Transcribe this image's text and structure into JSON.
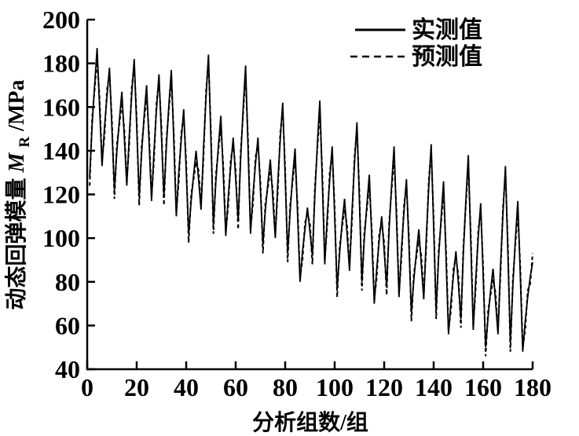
{
  "figure": {
    "background_color": "#ffffff",
    "line_color": "#000000",
    "y_axis_label": {
      "prefix": "动态回弹模量",
      "symbol": "M",
      "subscript": "R",
      "unit": "/MPa"
    },
    "x_axis_label": "分析组数/组"
  },
  "legend": [
    {
      "label": "实测值",
      "style": "solid"
    },
    {
      "label": "预测值",
      "style": "dashed"
    }
  ],
  "chart_data": {
    "type": "line",
    "title": "",
    "xlabel": "分析组数/组",
    "ylabel": "动态回弹模量 MR/MPa",
    "xlim": [
      0,
      180
    ],
    "ylim": [
      40,
      200
    ],
    "x_ticks": [
      0,
      20,
      40,
      60,
      80,
      100,
      120,
      140,
      160,
      180
    ],
    "y_ticks": [
      40,
      60,
      80,
      100,
      120,
      140,
      160,
      180,
      200
    ],
    "grid": false,
    "legend_position": "top-right",
    "x_start": 1,
    "series": [
      {
        "name": "实测值",
        "style": "solid",
        "values": [
          128,
          152,
          170,
          187,
          160,
          133,
          151,
          165,
          178,
          150,
          122,
          140,
          154,
          167,
          146,
          124,
          147,
          166,
          182,
          151,
          119,
          139,
          156,
          170,
          144,
          117,
          140,
          159,
          175,
          147,
          119,
          142,
          161,
          177,
          144,
          110,
          130,
          145,
          159,
          131,
          102,
          117,
          129,
          140,
          127,
          113,
          141,
          164,
          184,
          145,
          106,
          126,
          142,
          156,
          129,
          101,
          119,
          133,
          146,
          127,
          108,
          136,
          159,
          179,
          141,
          102,
          120,
          134,
          146,
          122,
          97,
          113,
          125,
          136,
          118,
          100,
          125,
          145,
          162,
          128,
          93,
          112,
          128,
          141,
          111,
          80,
          94,
          104,
          114,
          103,
          92,
          120,
          143,
          163,
          126,
          88,
          110,
          127,
          142,
          110,
          77,
          93,
          107,
          118,
          102,
          85,
          112,
          134,
          153,
          117,
          80,
          100,
          115,
          129,
          100,
          70,
          86,
          99,
          110,
          94,
          78,
          104,
          124,
          142,
          108,
          73,
          95,
          112,
          127,
          97,
          66,
          81,
          93,
          104,
          88,
          72,
          100,
          123,
          143,
          105,
          67,
          91,
          109,
          126,
          91,
          56,
          71,
          83,
          94,
          79,
          63,
          93,
          117,
          138,
          98,
          58,
          81,
          100,
          116,
          83,
          50,
          64,
          76,
          86,
          71,
          56,
          87,
          111,
          133,
          93,
          52,
          78,
          99,
          117,
          83,
          48,
          62,
          73,
          82,
          89
        ]
      },
      {
        "name": "预测值",
        "style": "dashed",
        "values": [
          124,
          155,
          168,
          182,
          164,
          135,
          147,
          168,
          175,
          154,
          118,
          143,
          152,
          162,
          150,
          126,
          143,
          169,
          179,
          155,
          115,
          142,
          154,
          165,
          148,
          119,
          136,
          162,
          172,
          151,
          115,
          145,
          159,
          172,
          148,
          112,
          126,
          148,
          156,
          135,
          98,
          120,
          127,
          135,
          131,
          115,
          137,
          167,
          181,
          149,
          102,
          129,
          140,
          151,
          133,
          103,
          115,
          136,
          143,
          131,
          104,
          139,
          157,
          174,
          145,
          104,
          116,
          137,
          143,
          126,
          93,
          116,
          123,
          131,
          122,
          102,
          121,
          148,
          159,
          132,
          89,
          115,
          126,
          136,
          115,
          82,
          90,
          107,
          111,
          107,
          88,
          123,
          141,
          158,
          130,
          90,
          106,
          130,
          139,
          114,
          73,
          96,
          105,
          113,
          106,
          87,
          108,
          137,
          150,
          121,
          76,
          103,
          113,
          124,
          104,
          72,
          82,
          102,
          107,
          98,
          74,
          107,
          122,
          137,
          112,
          75,
          91,
          115,
          124,
          101,
          62,
          84,
          91,
          99,
          92,
          74,
          96,
          126,
          140,
          109,
          63,
          94,
          107,
          121,
          95,
          58,
          67,
          86,
          91,
          83,
          59,
          96,
          115,
          133,
          102,
          60,
          77,
          103,
          113,
          87,
          46,
          67,
          74,
          81,
          75,
          58,
          83,
          114,
          130,
          97,
          48,
          81,
          97,
          112,
          87,
          50,
          58,
          76,
          79,
          93
        ]
      }
    ]
  }
}
